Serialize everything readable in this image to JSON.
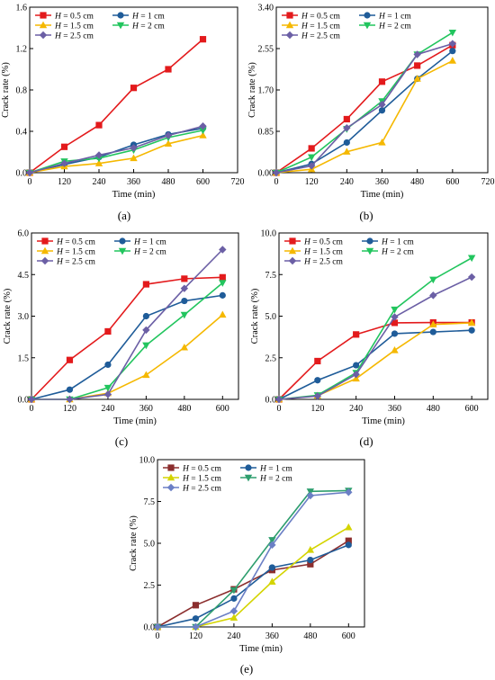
{
  "figure": {
    "panels": [
      "(a)",
      "(b)",
      "(c)",
      "(d)",
      "(e)"
    ]
  },
  "legend_prefix": "H",
  "chart_data": [
    {
      "type": "line",
      "panel_label": "(a)",
      "xlabel": "Time (min)",
      "ylabel": "Crack rate (%)",
      "xlim": [
        0,
        720
      ],
      "ylim": [
        0,
        1.6
      ],
      "xticks": [
        "0",
        "120",
        "240",
        "360",
        "480",
        "600",
        "720"
      ],
      "yticks": [
        "0.0",
        "0.4",
        "0.8",
        "1.2",
        "1.6"
      ],
      "legend_position": "top-left",
      "x": [
        0,
        120,
        240,
        360,
        480,
        600
      ],
      "series": [
        {
          "name": " = 0.5 cm",
          "color": "#e31a1c",
          "marker": "square",
          "values": [
            0,
            0.25,
            0.46,
            0.82,
            1.0,
            1.29
          ]
        },
        {
          "name": " = 1 cm",
          "color": "#1f5c99",
          "marker": "circle",
          "values": [
            0,
            0.08,
            0.15,
            0.27,
            0.37,
            0.43
          ]
        },
        {
          "name": " = 1.5 cm",
          "color": "#f5b800",
          "marker": "triangle-up",
          "values": [
            0,
            0.06,
            0.09,
            0.14,
            0.28,
            0.36
          ]
        },
        {
          "name": " = 2 cm",
          "color": "#22c55e",
          "marker": "triangle-down",
          "values": [
            0,
            0.11,
            0.14,
            0.22,
            0.34,
            0.41
          ]
        },
        {
          "name": " = 2.5 cm",
          "color": "#6b5fa5",
          "marker": "diamond",
          "values": [
            0,
            0.09,
            0.17,
            0.24,
            0.36,
            0.45
          ]
        }
      ]
    },
    {
      "type": "line",
      "panel_label": "(b)",
      "xlabel": "Time (min)",
      "ylabel": "Crack rate (%)",
      "xlim": [
        0,
        720
      ],
      "ylim": [
        0,
        3.4
      ],
      "xticks": [
        "0",
        "120",
        "240",
        "360",
        "480",
        "600",
        "720"
      ],
      "yticks": [
        "0.00",
        "0.85",
        "1.70",
        "2.55",
        "3.40"
      ],
      "legend_position": "top-left",
      "x": [
        0,
        120,
        240,
        360,
        480,
        600
      ],
      "series": [
        {
          "name": " = 0.5 cm",
          "color": "#e31a1c",
          "marker": "square",
          "values": [
            0,
            0.5,
            1.1,
            1.87,
            2.2,
            2.62
          ]
        },
        {
          "name": " = 1 cm",
          "color": "#1f5c99",
          "marker": "circle",
          "values": [
            0,
            0.18,
            0.62,
            1.28,
            1.93,
            2.5
          ]
        },
        {
          "name": " = 1.5 cm",
          "color": "#f5b800",
          "marker": "triangle-up",
          "values": [
            0,
            0.07,
            0.43,
            0.62,
            1.93,
            2.3
          ]
        },
        {
          "name": " = 2 cm",
          "color": "#22c55e",
          "marker": "triangle-down",
          "values": [
            0,
            0.32,
            0.9,
            1.47,
            2.43,
            2.88
          ]
        },
        {
          "name": " = 2.5 cm",
          "color": "#6b5fa5",
          "marker": "diamond",
          "values": [
            0,
            0.14,
            0.92,
            1.4,
            2.43,
            2.65
          ]
        }
      ]
    },
    {
      "type": "line",
      "panel_label": "(c)",
      "xlabel": "Time (min)",
      "ylabel": "Crack rate (%)",
      "xlim": [
        0,
        650
      ],
      "ylim": [
        0,
        6.0
      ],
      "xticks": [
        "0",
        "120",
        "240",
        "360",
        "480",
        "600"
      ],
      "yticks": [
        "0.0",
        "1.5",
        "3.0",
        "4.5",
        "6.0"
      ],
      "legend_position": "top-left",
      "x": [
        0,
        120,
        240,
        360,
        480,
        600
      ],
      "series": [
        {
          "name": " = 0.5 cm",
          "color": "#e31a1c",
          "marker": "square",
          "values": [
            0,
            1.42,
            2.45,
            4.15,
            4.35,
            4.4
          ]
        },
        {
          "name": " = 1 cm",
          "color": "#1f5c99",
          "marker": "circle",
          "values": [
            0,
            0.35,
            1.25,
            3.0,
            3.55,
            3.75
          ]
        },
        {
          "name": " = 1.5 cm",
          "color": "#f5b800",
          "marker": "triangle-up",
          "values": [
            0,
            0.0,
            0.22,
            0.88,
            1.87,
            3.05
          ]
        },
        {
          "name": " = 2 cm",
          "color": "#22c55e",
          "marker": "triangle-down",
          "values": [
            0,
            0.0,
            0.42,
            1.95,
            3.05,
            4.2
          ]
        },
        {
          "name": " = 2.5 cm",
          "color": "#6b5fa5",
          "marker": "diamond",
          "values": [
            0,
            0.0,
            0.18,
            2.5,
            4.0,
            5.4
          ]
        }
      ]
    },
    {
      "type": "line",
      "panel_label": "(d)",
      "xlabel": "Time (min)",
      "ylabel": "Crack rate (%)",
      "xlim": [
        0,
        650
      ],
      "ylim": [
        0,
        10.0
      ],
      "xticks": [
        "0",
        "120",
        "240",
        "360",
        "480",
        "600"
      ],
      "yticks": [
        "0.0",
        "2.5",
        "5.0",
        "7.5",
        "10.0"
      ],
      "legend_position": "top-left",
      "x": [
        0,
        120,
        240,
        360,
        480,
        600
      ],
      "series": [
        {
          "name": " = 0.5 cm",
          "color": "#e31a1c",
          "marker": "square",
          "values": [
            0,
            2.3,
            3.9,
            4.6,
            4.62,
            4.62
          ]
        },
        {
          "name": " = 1 cm",
          "color": "#1f5c99",
          "marker": "circle",
          "values": [
            0,
            1.15,
            2.05,
            3.95,
            4.05,
            4.15
          ]
        },
        {
          "name": " = 1.5 cm",
          "color": "#f5b800",
          "marker": "triangle-up",
          "values": [
            0,
            0.22,
            1.25,
            2.95,
            4.5,
            4.6
          ]
        },
        {
          "name": " = 2 cm",
          "color": "#22c55e",
          "marker": "triangle-down",
          "values": [
            0,
            0.25,
            1.6,
            5.4,
            7.2,
            8.5
          ]
        },
        {
          "name": " = 2.5 cm",
          "color": "#6b5fa5",
          "marker": "diamond",
          "values": [
            0,
            0.2,
            1.5,
            4.95,
            6.25,
            7.35
          ]
        }
      ]
    },
    {
      "type": "line",
      "panel_label": "(e)",
      "xlabel": "Time (min)",
      "ylabel": "Crack rate (%)",
      "xlim": [
        0,
        650
      ],
      "ylim": [
        0,
        10.0
      ],
      "xticks": [
        "0",
        "120",
        "240",
        "360",
        "480",
        "600"
      ],
      "yticks": [
        "0.0",
        "2.5",
        "5.0",
        "7.5",
        "10.0"
      ],
      "legend_position": "top-left",
      "x": [
        0,
        120,
        240,
        360,
        480,
        600
      ],
      "series": [
        {
          "name": " = 0.5 cm",
          "color": "#8b2e2e",
          "marker": "square",
          "values": [
            0,
            1.3,
            2.25,
            3.4,
            3.75,
            5.15
          ]
        },
        {
          "name": " = 1 cm",
          "color": "#1f5c99",
          "marker": "circle",
          "values": [
            0,
            0.5,
            1.7,
            3.55,
            4.0,
            4.9
          ]
        },
        {
          "name": " = 1.5 cm",
          "color": "#d4d400",
          "marker": "triangle-up",
          "values": [
            0,
            0.0,
            0.55,
            2.7,
            4.6,
            5.95
          ]
        },
        {
          "name": " = 2 cm",
          "color": "#2e9e6e",
          "marker": "triangle-down",
          "values": [
            0,
            0.0,
            2.2,
            5.2,
            8.1,
            8.15
          ]
        },
        {
          "name": " = 2.5 cm",
          "color": "#6b7fc5",
          "marker": "diamond",
          "values": [
            0,
            0.0,
            0.95,
            4.9,
            7.85,
            8.05
          ]
        }
      ]
    }
  ]
}
